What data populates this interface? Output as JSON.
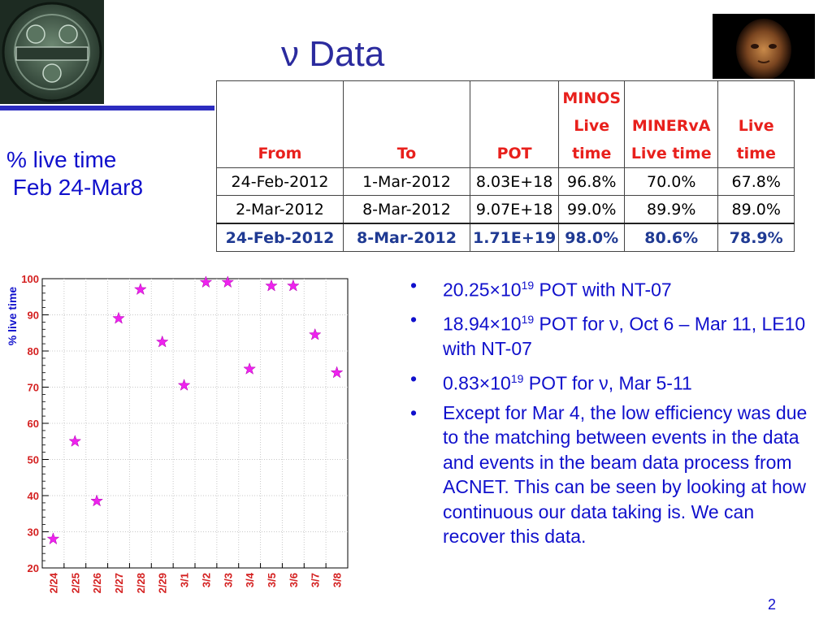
{
  "slide": {
    "title": "ν Data",
    "page_number": "2",
    "side_label_line1": "% live time",
    "side_label_line2": " Feb 24-Mar8"
  },
  "table": {
    "headers": [
      "From",
      "To",
      "POT",
      "MINOS Live time",
      "MINERvA Live time",
      "Live time"
    ],
    "rows": [
      [
        "24-Feb-2012",
        "1-Mar-2012",
        "8.03E+18",
        "96.8%",
        "70.0%",
        "67.8%"
      ],
      [
        "2-Mar-2012",
        "8-Mar-2012",
        "9.07E+18",
        "99.0%",
        "89.9%",
        "89.0%"
      ]
    ],
    "total": [
      "24-Feb-2012",
      "8-Mar-2012",
      "1.71E+19",
      "98.0%",
      "80.6%",
      "78.9%"
    ]
  },
  "bullets": [
    {
      "pre": "20.25×10",
      "sup": "19",
      "post": " POT with NT-07"
    },
    {
      "pre": "18.94×10",
      "sup": "19",
      "post": " POT for ν, Oct 6 – Mar 11, LE10   with NT-07"
    },
    {
      "pre": "0.83×10",
      "sup": "19",
      "post": " POT for ν, Mar 5-11"
    },
    {
      "pre": "Except for Mar 4, the low efficiency was due to the matching between events in the data and events in the beam data process from ACNET. This can be seen by looking at how continuous our data taking is. We can recover this data.",
      "sup": "",
      "post": ""
    }
  ],
  "chart_data": {
    "type": "scatter",
    "ylabel": "% live time",
    "xlabel": "",
    "ylim": [
      20,
      100
    ],
    "yticks": [
      20,
      30,
      40,
      50,
      60,
      70,
      80,
      90,
      100
    ],
    "grid": true,
    "marker": "star",
    "marker_color": "#ee22ee",
    "categories": [
      "2/24",
      "2/25",
      "2/26",
      "2/27",
      "2/28",
      "2/29",
      "3/1",
      "3/2",
      "3/3",
      "3/4",
      "3/5",
      "3/6",
      "3/7",
      "3/8"
    ],
    "values": [
      28,
      55,
      38.5,
      89,
      97,
      82.5,
      70.5,
      99,
      99,
      75,
      98,
      98,
      84.5,
      74
    ]
  },
  "colors": {
    "title": "#2b2b9e",
    "text": "#1010cc",
    "header_red": "#e8201c",
    "total_blue": "#1f3a93",
    "axis_red": "#d42020"
  },
  "icons": {
    "left_logo": "meliora-seal-icon",
    "right_logo": "bust-photo-icon"
  }
}
